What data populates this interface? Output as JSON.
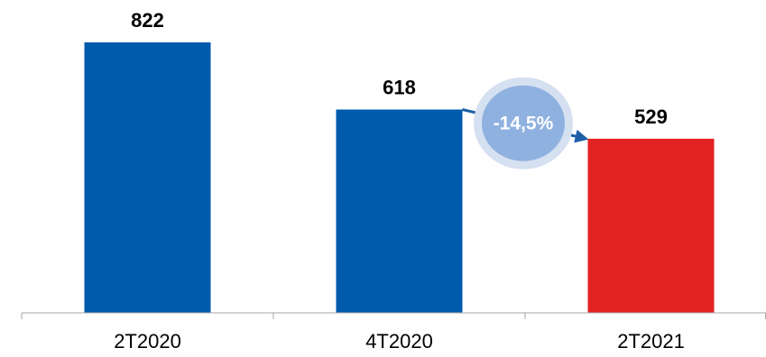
{
  "chart_data": {
    "type": "bar",
    "categories": [
      "2T2020",
      "4T2020",
      "2T2021"
    ],
    "values": [
      822,
      618,
      529
    ],
    "data_labels": [
      "822",
      "618",
      "529"
    ],
    "bar_colors": [
      "#005BAC",
      "#005BAC",
      "#E32322"
    ],
    "title": "",
    "xlabel": "",
    "ylabel": "",
    "ylim": [
      0,
      900
    ],
    "grid": false,
    "legend": "none",
    "annotation": {
      "text": "-14,5%",
      "from_category": "4T2020",
      "to_category": "2T2021",
      "badge_fill": "#8FB1E0",
      "badge_ring": "#D5E0F1",
      "arrow_color": "#1F5FA8"
    },
    "axis_color": "#A6A6A6"
  }
}
